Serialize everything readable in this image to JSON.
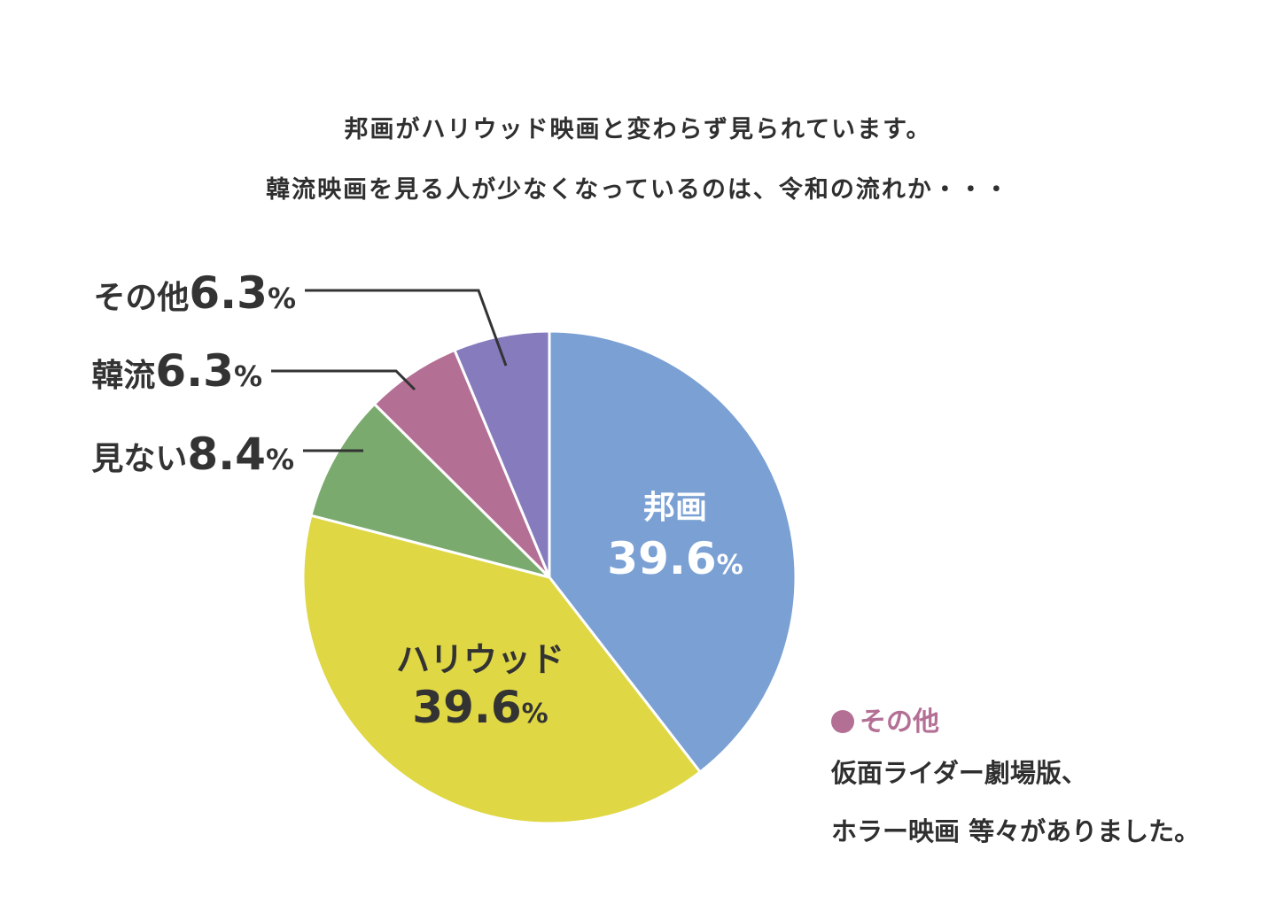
{
  "headline": {
    "line1": "邦画がハリウッド映画と変わらず見られています。",
    "line2": "韓流映画を見る人が少なくなっているのは、令和の流れか・・・"
  },
  "note": {
    "title": "その他",
    "line1": "仮面ライダー劇場版、",
    "line2": "ホラー映画 等々がありました。",
    "bullet_color": "#b46f95"
  },
  "chart_data": {
    "type": "pie",
    "start_angle_deg": 0,
    "direction": "clockwise",
    "slices": [
      {
        "label": "邦画",
        "value": 39.6,
        "value_text": "39.6",
        "unit": "%",
        "color": "#7aa0d4",
        "label_placement": "inside",
        "text_color": "#ffffff"
      },
      {
        "label": "ハリウッド",
        "value": 39.6,
        "value_text": "39.6",
        "unit": "%",
        "color": "#dfd744",
        "label_placement": "inside",
        "text_color": "#333333"
      },
      {
        "label": "見ない",
        "value": 8.4,
        "value_text": "8.4",
        "unit": "%",
        "color": "#7aaa6e",
        "label_placement": "outside"
      },
      {
        "label": "韓流",
        "value": 6.3,
        "value_text": "6.3",
        "unit": "%",
        "color": "#b46f95",
        "label_placement": "outside"
      },
      {
        "label": "その他",
        "value": 6.3,
        "value_text": "6.3",
        "unit": "%",
        "color": "#857bbd",
        "label_placement": "outside"
      }
    ]
  }
}
